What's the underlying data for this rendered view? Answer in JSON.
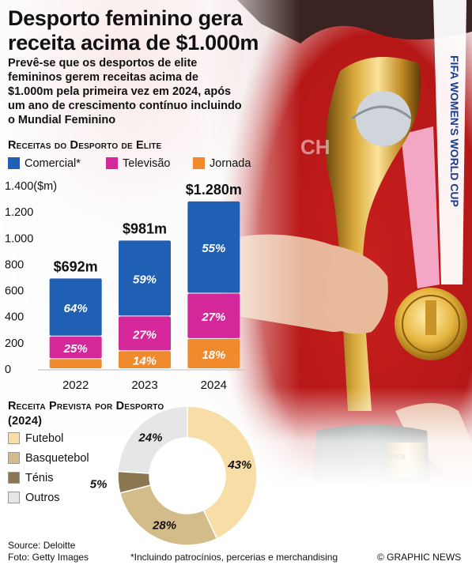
{
  "title": "Desporto feminino gera receita acima de $1.000m",
  "subtitle": "Prevê-se que os desportos de elite femininos gerem receitas acima de $1.000m pela primeira vez em 2024, após um ano de crescimento contínuo incluindo o Mundial Feminino",
  "chart_data": [
    {
      "type": "bar",
      "stacked": true,
      "title": "Receitas do Desporto de Elite",
      "ylabel": "($m)",
      "ylim": [
        0,
        1400
      ],
      "yticks": [
        0,
        200,
        400,
        600,
        800,
        1000,
        1200,
        1400
      ],
      "ytick_labels": [
        "0",
        "200",
        "400",
        "600",
        "800",
        "1.000",
        "1.200",
        "1.400($m)"
      ],
      "categories": [
        "2022",
        "2023",
        "2024"
      ],
      "totals": [
        692,
        981,
        1280
      ],
      "total_labels": [
        "$692m",
        "$981m",
        "$1.280m"
      ],
      "series": [
        {
          "name": "Jornada",
          "color": "#f08a2c",
          "percent": [
            11,
            14,
            18
          ],
          "labels": [
            "",
            "14%",
            "18%"
          ]
        },
        {
          "name": "Televisão",
          "color": "#d4279a",
          "percent": [
            25,
            27,
            27
          ],
          "labels": [
            "25%",
            "27%",
            "27%"
          ]
        },
        {
          "name": "Comercial*",
          "color": "#1f5fb4",
          "percent": [
            64,
            59,
            55
          ],
          "labels": [
            "64%",
            "59%",
            "55%"
          ]
        }
      ],
      "legend_order": [
        "Comercial*",
        "Televisão",
        "Jornada"
      ],
      "legend_position": "top"
    },
    {
      "type": "pie",
      "donut": true,
      "title": "Receita Prevista por Desporto (2024)",
      "slices": [
        {
          "name": "Futebol",
          "value": 43,
          "label": "43%",
          "color": "#f8dea6"
        },
        {
          "name": "Basquetebol",
          "value": 28,
          "label": "28%",
          "color": "#d4bc8a"
        },
        {
          "name": "Ténis",
          "value": 5,
          "label": "5%",
          "color": "#8a7750"
        },
        {
          "name": "Outros",
          "value": 24,
          "label": "24%",
          "color": "#e6e6e6"
        }
      ],
      "legend_position": "left"
    }
  ],
  "footer": {
    "source": "Source: Deloitte",
    "photo": "Foto: Getty Images",
    "note": "*Incluindo patrocínios, percerias e merchandising",
    "credit": "© GRAPHIC NEWS"
  },
  "photo": {
    "medal_text": "FIFA WOMEN'S WORLD CUP",
    "ribbon_text": "FIFA WOMEN'S WORLD CUP",
    "shirt_text": "CH",
    "base_text": "FIFA WOMEN'S WORLD CUP"
  }
}
